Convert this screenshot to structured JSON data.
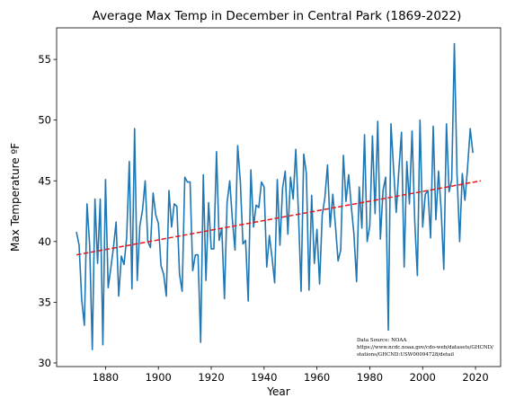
{
  "chart_data": {
    "type": "line",
    "title": "Average Max Temp in December in Central Park (1869-2022)",
    "xlabel": "Year",
    "ylabel": "Max Temperature ºF",
    "xlim": [
      1861.5,
      2029.5
    ],
    "ylim": [
      29.7,
      57.6
    ],
    "xticks": [
      1880,
      1900,
      1920,
      1940,
      1960,
      1980,
      2000,
      2020
    ],
    "yticks": [
      30,
      35,
      40,
      45,
      50,
      55
    ],
    "grid": false,
    "annotation": [
      "Data Source: NOAA",
      "https://www.ncdc.noaa.gov/cdo-web/datasets/GHCND/",
      "stations/GHCND:USW00094728/detail"
    ],
    "series": [
      {
        "style": "solid",
        "color": "#1f77b4",
        "x_start": 1869,
        "x_step": 1,
        "values": [
          40.8,
          39.7,
          35.2,
          33.1,
          43.1,
          39.7,
          31.1,
          43.5,
          38.2,
          43.5,
          31.5,
          45.1,
          36.2,
          37.8,
          39.5,
          41.6,
          35.5,
          38.8,
          38.1,
          40.3,
          46.6,
          36.1,
          49.3,
          36.8,
          41.3,
          42.6,
          45.0,
          40.0,
          39.5,
          44.0,
          42.2,
          41.5,
          38.0,
          37.3,
          35.5,
          44.2,
          41.2,
          43.1,
          42.9,
          37.3,
          35.9,
          45.3,
          44.9,
          44.9,
          37.6,
          38.9,
          38.9,
          31.7,
          45.5,
          36.8,
          43.2,
          39.4,
          39.4,
          47.4,
          40.1,
          41.1,
          35.3,
          43.2,
          45.0,
          41.8,
          39.3,
          47.9,
          45.0,
          39.8,
          40.1,
          35.1,
          45.9,
          41.2,
          43.0,
          42.8,
          44.9,
          44.5,
          37.9,
          40.5,
          38.7,
          36.6,
          45.1,
          39.7,
          44.4,
          45.8,
          40.6,
          45.3,
          43.5,
          47.6,
          42.4,
          35.9,
          47.2,
          45.6,
          36.0,
          43.8,
          38.2,
          41.0,
          36.5,
          42.2,
          43.6,
          46.3,
          41.2,
          43.9,
          41.3,
          38.4,
          39.3,
          47.1,
          43.3,
          45.5,
          42.9,
          40.6,
          36.7,
          44.5,
          41.1,
          48.8,
          40.0,
          41.3,
          48.7,
          42.3,
          49.9,
          40.2,
          44.2,
          45.3,
          32.7,
          49.7,
          46.0,
          42.4,
          45.9,
          49.0,
          37.9,
          46.6,
          43.1,
          49.1,
          41.7,
          37.2,
          50.0,
          41.2,
          43.9,
          44.2,
          40.3,
          49.5,
          41.8,
          45.8,
          42.6,
          37.7,
          49.7,
          44.1,
          45.1,
          56.3,
          45.6,
          40.0,
          45.6,
          43.4,
          46.1,
          49.3,
          47.3
        ]
      },
      {
        "style": "dashed",
        "color": "#e31a1c",
        "x": [
          1869,
          2022
        ],
        "values": [
          38.9,
          45.0
        ]
      }
    ]
  }
}
